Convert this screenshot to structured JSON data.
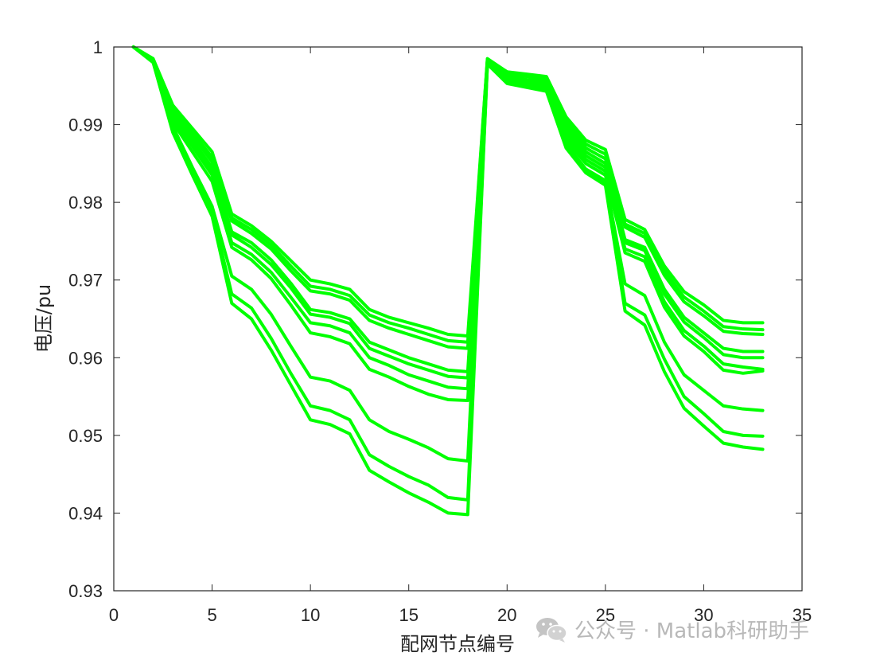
{
  "chart_data": {
    "type": "line",
    "title": "",
    "xlabel": "配网节点编号",
    "ylabel": "电压/pu",
    "xlim": [
      0,
      35
    ],
    "ylim": [
      0.93,
      1.0
    ],
    "xticks": [
      0,
      5,
      10,
      15,
      20,
      25,
      30,
      35
    ],
    "xtick_labels": [
      "0",
      "5",
      "10",
      "15",
      "20",
      "25",
      "30",
      "35"
    ],
    "yticks": [
      0.93,
      0.94,
      0.95,
      0.96,
      0.97,
      0.98,
      0.99,
      1.0
    ],
    "ytick_labels": [
      "0.93",
      "0.94",
      "0.95",
      "0.96",
      "0.97",
      "0.98",
      "0.99",
      "1"
    ],
    "grid": false,
    "line_color": "#00ff00",
    "x": [
      1,
      2,
      3,
      4,
      5,
      6,
      7,
      8,
      9,
      10,
      11,
      12,
      13,
      14,
      15,
      16,
      17,
      18,
      19,
      20,
      21,
      22,
      23,
      24,
      25,
      26,
      27,
      28,
      29,
      30,
      31,
      32,
      33
    ],
    "series": [
      {
        "values": [
          1.0,
          0.9985,
          0.9925,
          0.9895,
          0.9865,
          0.9785,
          0.977,
          0.975,
          0.9725,
          0.97,
          0.9695,
          0.9688,
          0.9662,
          0.9652,
          0.9645,
          0.9638,
          0.963,
          0.9628,
          0.9985,
          0.9968,
          0.9965,
          0.9962,
          0.991,
          0.988,
          0.9868,
          0.9778,
          0.9765,
          0.9718,
          0.9685,
          0.9668,
          0.9648,
          0.9645,
          0.9645
        ]
      },
      {
        "values": [
          1.0,
          0.9984,
          0.9922,
          0.989,
          0.9858,
          0.978,
          0.9765,
          0.9745,
          0.9718,
          0.9692,
          0.9688,
          0.968,
          0.9655,
          0.9645,
          0.9638,
          0.963,
          0.9622,
          0.962,
          0.9984,
          0.9966,
          0.9963,
          0.996,
          0.9905,
          0.9875,
          0.9862,
          0.9772,
          0.976,
          0.9712,
          0.9678,
          0.966,
          0.964,
          0.9637,
          0.9636
        ]
      },
      {
        "values": [
          1.0,
          0.9984,
          0.992,
          0.9886,
          0.9852,
          0.9776,
          0.976,
          0.974,
          0.9712,
          0.9686,
          0.9682,
          0.9674,
          0.9648,
          0.9638,
          0.963,
          0.9622,
          0.9614,
          0.9612,
          0.9983,
          0.9965,
          0.9962,
          0.9958,
          0.99,
          0.987,
          0.9856,
          0.9768,
          0.9755,
          0.9706,
          0.9672,
          0.9654,
          0.9634,
          0.9631,
          0.963
        ]
      },
      {
        "values": [
          1.0,
          0.9983,
          0.9915,
          0.988,
          0.9845,
          0.9762,
          0.9748,
          0.9726,
          0.9696,
          0.9662,
          0.9658,
          0.965,
          0.962,
          0.961,
          0.96,
          0.9592,
          0.9584,
          0.9582,
          0.9982,
          0.9962,
          0.9958,
          0.9955,
          0.9895,
          0.9865,
          0.985,
          0.9752,
          0.9742,
          0.9688,
          0.9652,
          0.9632,
          0.9612,
          0.9608,
          0.9608
        ]
      },
      {
        "values": [
          1.0,
          0.9983,
          0.9912,
          0.9876,
          0.984,
          0.9758,
          0.9742,
          0.972,
          0.969,
          0.9656,
          0.9652,
          0.9644,
          0.9612,
          0.9602,
          0.9592,
          0.9584,
          0.9576,
          0.9574,
          0.9981,
          0.996,
          0.9956,
          0.9952,
          0.989,
          0.986,
          0.9845,
          0.9748,
          0.9738,
          0.9682,
          0.9646,
          0.9626,
          0.9604,
          0.96,
          0.96
        ]
      },
      {
        "values": [
          1.0,
          0.9982,
          0.9908,
          0.9872,
          0.9835,
          0.9748,
          0.9733,
          0.971,
          0.9678,
          0.9645,
          0.9641,
          0.9632,
          0.96,
          0.959,
          0.9578,
          0.957,
          0.9562,
          0.956,
          0.998,
          0.9958,
          0.9954,
          0.995,
          0.9885,
          0.9855,
          0.984,
          0.974,
          0.973,
          0.9672,
          0.9635,
          0.9615,
          0.9592,
          0.9588,
          0.9585
        ]
      },
      {
        "values": [
          1.0,
          0.9982,
          0.9903,
          0.9865,
          0.9827,
          0.9742,
          0.9726,
          0.9702,
          0.9668,
          0.9632,
          0.9627,
          0.9618,
          0.9585,
          0.9575,
          0.9563,
          0.9553,
          0.9546,
          0.9545,
          0.998,
          0.9957,
          0.9953,
          0.9948,
          0.988,
          0.985,
          0.9835,
          0.9735,
          0.9724,
          0.9665,
          0.9628,
          0.9608,
          0.9584,
          0.958,
          0.9583
        ]
      },
      {
        "values": [
          1.0,
          0.9981,
          0.9898,
          0.9845,
          0.9795,
          0.9705,
          0.9688,
          0.9656,
          0.9615,
          0.9575,
          0.957,
          0.9558,
          0.952,
          0.9505,
          0.9495,
          0.9484,
          0.947,
          0.9467,
          0.9979,
          0.9955,
          0.995,
          0.9945,
          0.9875,
          0.9843,
          0.9828,
          0.9695,
          0.968,
          0.962,
          0.9578,
          0.9558,
          0.9538,
          0.9534,
          0.9532
        ]
      },
      {
        "values": [
          1.0,
          0.9981,
          0.9895,
          0.984,
          0.9788,
          0.9682,
          0.9664,
          0.9625,
          0.958,
          0.9538,
          0.9532,
          0.952,
          0.9475,
          0.946,
          0.9447,
          0.9436,
          0.942,
          0.9417,
          0.9978,
          0.9954,
          0.9949,
          0.9944,
          0.9872,
          0.984,
          0.9825,
          0.967,
          0.9655,
          0.9598,
          0.955,
          0.9528,
          0.9505,
          0.95,
          0.9499
        ]
      },
      {
        "values": [
          1.0,
          0.998,
          0.989,
          0.9835,
          0.9782,
          0.967,
          0.965,
          0.961,
          0.9565,
          0.952,
          0.9514,
          0.9502,
          0.9455,
          0.944,
          0.9426,
          0.9414,
          0.94,
          0.9398,
          0.9978,
          0.9953,
          0.9948,
          0.9943,
          0.987,
          0.9838,
          0.9822,
          0.966,
          0.9642,
          0.9582,
          0.9535,
          0.9512,
          0.949,
          0.9485,
          0.9482
        ]
      }
    ]
  },
  "watermark": {
    "icon": "wechat-icon",
    "text": "公众号 · Matlab科研助手"
  }
}
